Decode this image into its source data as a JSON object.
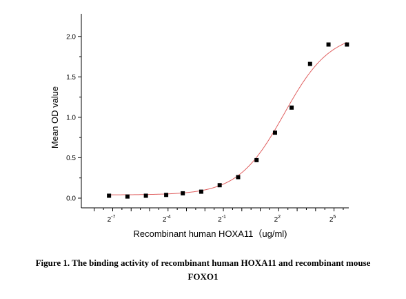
{
  "chart_data": {
    "type": "scatter",
    "xlabel": "Recombinant human HOXA11（ug/ml)",
    "ylabel": "Mean OD value",
    "x_scale": "log2",
    "xlim": [
      -8.7,
      5.8
    ],
    "ylim": [
      -0.12,
      2.28
    ],
    "y_ticks": [
      "0.0",
      "0.5",
      "1.0",
      "1.5",
      "2.0"
    ],
    "x_tick_labels": [
      {
        "base": "2",
        "exp": "-7",
        "at": -7
      },
      {
        "base": "2",
        "exp": "-4",
        "at": -4
      },
      {
        "base": "2",
        "exp": "-1",
        "at": -1
      },
      {
        "base": "2",
        "exp": "2",
        "at": 2
      },
      {
        "base": "2",
        "exp": "5",
        "at": 5
      }
    ],
    "x_major_ticks": [
      -8,
      -7,
      -6,
      -5,
      -4,
      -3,
      -2,
      -1,
      0,
      1,
      2,
      3,
      4,
      5
    ],
    "points": [
      {
        "x": -7.2,
        "y": 0.03
      },
      {
        "x": -6.2,
        "y": 0.02
      },
      {
        "x": -5.2,
        "y": 0.03
      },
      {
        "x": -4.1,
        "y": 0.04
      },
      {
        "x": -3.2,
        "y": 0.06
      },
      {
        "x": -2.2,
        "y": 0.08
      },
      {
        "x": -1.2,
        "y": 0.16
      },
      {
        "x": -0.2,
        "y": 0.26
      },
      {
        "x": 0.8,
        "y": 0.47
      },
      {
        "x": 1.8,
        "y": 0.81
      },
      {
        "x": 2.7,
        "y": 1.12
      },
      {
        "x": 3.7,
        "y": 1.66
      },
      {
        "x": 4.7,
        "y": 1.9
      },
      {
        "x": 5.7,
        "y": 1.9
      }
    ],
    "fit": {
      "type": "4PL",
      "bottom": 0.04,
      "top": 2.05,
      "x50": 2.3,
      "slope": 0.8
    },
    "colors": {
      "points": "#000000",
      "fit": "#e06060",
      "axis": "#000000"
    }
  },
  "caption": {
    "line1": "Figure 1. The binding activity of recombinant human HOXA11 and recombinant mouse",
    "line2": "FOXO1"
  }
}
